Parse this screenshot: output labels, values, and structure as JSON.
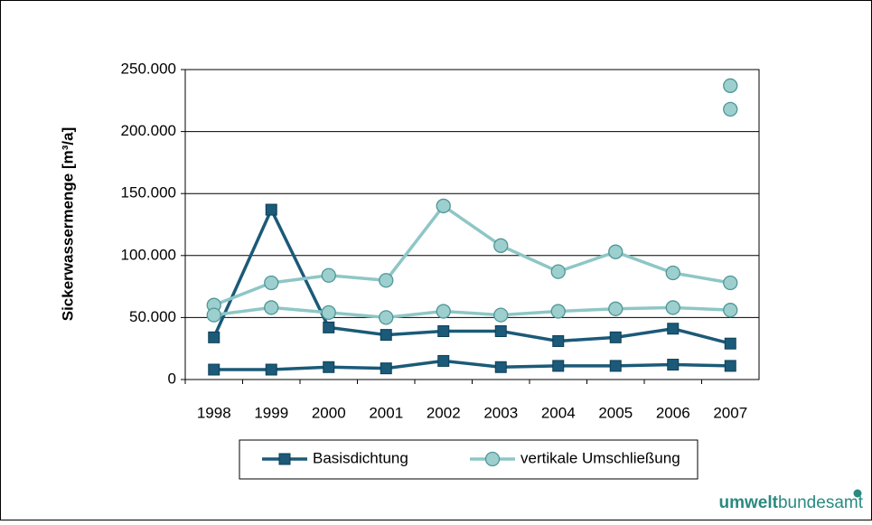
{
  "chart_data": {
    "type": "line",
    "y_label": "Sickerwassermenge [m³/a]",
    "categories": [
      "1998",
      "1999",
      "2000",
      "2001",
      "2002",
      "2003",
      "2004",
      "2005",
      "2006",
      "2007"
    ],
    "ylim": [
      0,
      250000
    ],
    "yticks": [
      0,
      {
        "value": 50000,
        "label": "50.000"
      },
      {
        "value": 100000,
        "label": "100.000"
      },
      {
        "value": 150000,
        "label": "150.000"
      },
      {
        "value": 200000,
        "label": "200.000"
      },
      {
        "value": 250000,
        "label": "250.000"
      }
    ],
    "grid": true,
    "legend": "bottom",
    "series": [
      {
        "name": "Basisdichtung",
        "color": "#1b5a78",
        "marker": "square",
        "lines": [
          [
            34000,
            137000,
            42000,
            36000,
            39000,
            39000,
            31000,
            34000,
            41000,
            29000
          ],
          [
            8000,
            8000,
            10000,
            9000,
            15000,
            10000,
            11000,
            11000,
            12000,
            11000
          ]
        ]
      },
      {
        "name": "vertikale Umschließung",
        "color": "#8ec6c6",
        "marker": "circle",
        "lines": [
          [
            60000,
            78000,
            84000,
            80000,
            140000,
            108000,
            87000,
            103000,
            86000,
            78000
          ],
          [
            52000,
            58000,
            54000,
            50000,
            55000,
            52000,
            55000,
            57000,
            58000,
            56000
          ],
          [
            null,
            null,
            null,
            null,
            null,
            null,
            null,
            null,
            null,
            237000
          ],
          [
            null,
            null,
            null,
            null,
            null,
            null,
            null,
            null,
            null,
            218000
          ]
        ]
      }
    ]
  },
  "logo": {
    "bold": "umwelt",
    "rest": "bundesamt"
  }
}
